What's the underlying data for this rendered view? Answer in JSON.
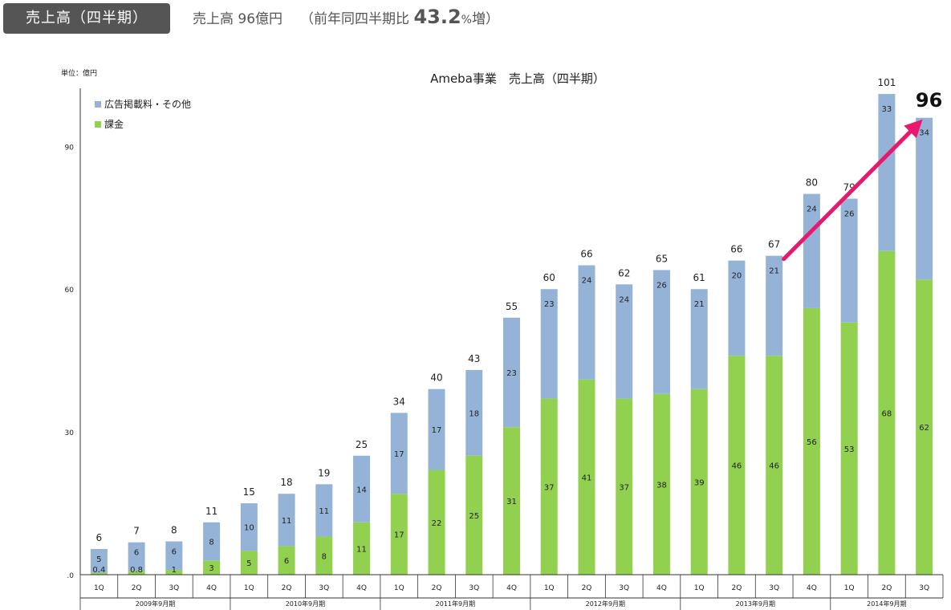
{
  "header": {
    "badge": "売上高（四半期）",
    "summary_prefix": "売上高 96億円",
    "growth_prefix": "（前年同四半期比",
    "growth_value": "43.2",
    "growth_suffix_pct": "%",
    "growth_suffix": "増）"
  },
  "chart_data": {
    "type": "bar",
    "stacked": true,
    "title": "Ameba事業　売上高（四半期）",
    "unit_label": "単位：億円",
    "ylim": [
      0,
      105
    ],
    "yticks": [
      0,
      30,
      60,
      90
    ],
    "ytick_labels": [
      ".0",
      "30",
      "60",
      "90"
    ],
    "categories": [
      "1Q",
      "2Q",
      "3Q",
      "4Q",
      "1Q",
      "2Q",
      "3Q",
      "4Q",
      "1Q",
      "2Q",
      "3Q",
      "4Q",
      "1Q",
      "2Q",
      "3Q",
      "4Q",
      "1Q",
      "2Q",
      "3Q",
      "4Q",
      "1Q",
      "2Q",
      "3Q"
    ],
    "groups": [
      {
        "label": "2009年9月期",
        "count": 4
      },
      {
        "label": "2010年9月期",
        "count": 4
      },
      {
        "label": "2011年9月期",
        "count": 4
      },
      {
        "label": "2012年9月期",
        "count": 4
      },
      {
        "label": "2013年9月期",
        "count": 4
      },
      {
        "label": "2014年9月期",
        "count": 3
      }
    ],
    "series": [
      {
        "name": "課金",
        "color": "#92d050",
        "values": [
          0.4,
          0.8,
          1,
          3,
          5,
          6,
          8,
          11,
          17,
          22,
          25,
          31,
          37,
          41,
          37,
          38,
          39,
          46,
          46,
          56,
          53,
          68,
          62
        ],
        "labels": [
          "0.4",
          "0.8",
          "1",
          "3",
          "5",
          "6",
          "8",
          "11",
          "17",
          "22",
          "25",
          "31",
          "37",
          "41",
          "37",
          "38",
          "39",
          "46",
          "46",
          "56",
          "53",
          "68",
          "62"
        ]
      },
      {
        "name": "広告掲載料・その他",
        "color": "#95b3d7",
        "values": [
          5,
          6,
          6,
          8,
          10,
          11,
          11,
          14,
          17,
          17,
          18,
          23,
          23,
          24,
          24,
          26,
          21,
          20,
          21,
          24,
          26,
          33,
          34
        ],
        "labels": [
          "5",
          "6",
          "6",
          "8",
          "10",
          "11",
          "11",
          "14",
          "17",
          "17",
          "18",
          "23",
          "23",
          "24",
          "24",
          "26",
          "21",
          "20",
          "21",
          "24",
          "26",
          "33",
          "34"
        ]
      }
    ],
    "totals": [
      "6",
      "7",
      "8",
      "11",
      "15",
      "18",
      "19",
      "25",
      "34",
      "40",
      "43",
      "55",
      "60",
      "66",
      "62",
      "65",
      "61",
      "66",
      "67",
      "80",
      "79",
      "101",
      "96"
    ],
    "legend": [
      "広告掲載料・その他",
      "課金"
    ],
    "legend_position": "top-left",
    "highlight": {
      "label": "96",
      "arrow_from_index": 18,
      "arrow_to_index": 22,
      "arrow_color": "#e8196c"
    },
    "grid": false
  }
}
